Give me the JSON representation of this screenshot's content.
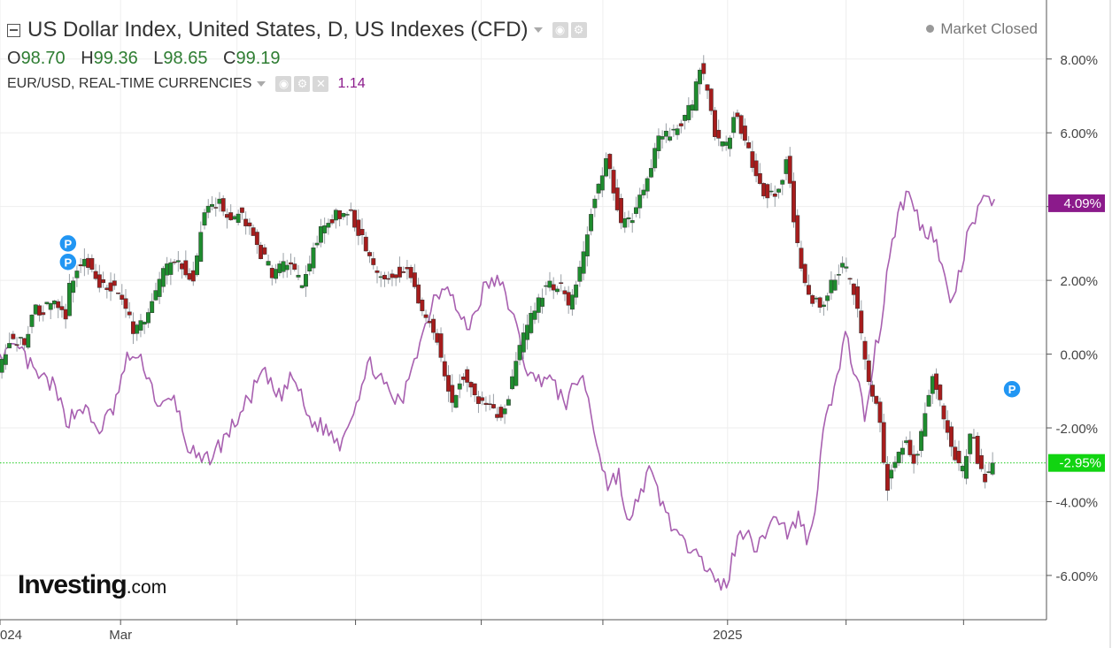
{
  "header": {
    "title": "US Dollar Index, United States, D, US Indexes (CFD)",
    "ohlc": [
      {
        "key": "O",
        "value": "98.70"
      },
      {
        "key": "H",
        "value": "99.36"
      },
      {
        "key": "L",
        "value": "98.65"
      },
      {
        "key": "C",
        "value": "99.19"
      }
    ],
    "secondary_series": "EUR/USD, REAL-TIME CURRENCIES",
    "secondary_value": "1.14",
    "market_status": "Market Closed"
  },
  "logo": {
    "text": "Investing",
    "suffix": ".com"
  },
  "colors": {
    "up": "#1e8c2e",
    "down": "#a61c1c",
    "overlay": "#a860b0",
    "last_label": "#11d411",
    "overlay_label": "#8b1a8b"
  },
  "chart_data": {
    "type": "line",
    "y_unit": "%",
    "y_ticks": [
      "8.00%",
      "6.00%",
      "4.00%",
      "2.00%",
      "0.00%",
      "-2.00%",
      "-4.00%",
      "-6.00%"
    ],
    "ylim": [
      -7.2,
      9.6
    ],
    "x_tick_labels": [
      {
        "label": "024",
        "t": 0
      },
      {
        "label": "Mar",
        "t": 0.117
      },
      {
        "label": "2025",
        "t": 0.706
      }
    ],
    "x_gridlines": [
      0,
      0.117,
      0.23,
      0.345,
      0.467,
      0.585,
      0.706,
      0.821,
      0.935
    ],
    "last_values": {
      "usd_index": "-2.95%",
      "eur_usd": "4.09%"
    },
    "markers": [
      {
        "label": "P",
        "t": 0.066,
        "y": 3.0
      },
      {
        "label": "P",
        "t": 0.066,
        "y": 2.5
      },
      {
        "label": "P",
        "t": 0.982,
        "y": -0.95
      }
    ],
    "series": [
      {
        "kind": "candles",
        "anchors": [
          [
            0,
            -0.6
          ],
          [
            0.01,
            0.4
          ],
          [
            0.025,
            0.3
          ],
          [
            0.035,
            1.2
          ],
          [
            0.055,
            1.3
          ],
          [
            0.065,
            1.0
          ],
          [
            0.07,
            2.0
          ],
          [
            0.085,
            2.6
          ],
          [
            0.095,
            2.0
          ],
          [
            0.115,
            1.8
          ],
          [
            0.13,
            0.7
          ],
          [
            0.145,
            1.0
          ],
          [
            0.16,
            2.2
          ],
          [
            0.175,
            2.6
          ],
          [
            0.19,
            2.0
          ],
          [
            0.2,
            4.0
          ],
          [
            0.215,
            4.1
          ],
          [
            0.225,
            3.5
          ],
          [
            0.235,
            3.9
          ],
          [
            0.25,
            3.0
          ],
          [
            0.265,
            2.2
          ],
          [
            0.28,
            2.5
          ],
          [
            0.295,
            1.8
          ],
          [
            0.31,
            3.2
          ],
          [
            0.325,
            3.7
          ],
          [
            0.34,
            3.9
          ],
          [
            0.355,
            3.0
          ],
          [
            0.37,
            2.0
          ],
          [
            0.385,
            2.2
          ],
          [
            0.4,
            2.3
          ],
          [
            0.412,
            1.0
          ],
          [
            0.425,
            0.6
          ],
          [
            0.44,
            -1.4
          ],
          [
            0.45,
            -0.5
          ],
          [
            0.46,
            -1.0
          ],
          [
            0.475,
            -1.5
          ],
          [
            0.49,
            -1.6
          ],
          [
            0.5,
            -0.6
          ],
          [
            0.51,
            0.5
          ],
          [
            0.52,
            1.2
          ],
          [
            0.53,
            1.8
          ],
          [
            0.545,
            1.9
          ],
          [
            0.555,
            1.2
          ],
          [
            0.565,
            2.3
          ],
          [
            0.575,
            3.8
          ],
          [
            0.59,
            5.3
          ],
          [
            0.6,
            4.2
          ],
          [
            0.605,
            3.5
          ],
          [
            0.615,
            3.7
          ],
          [
            0.63,
            4.8
          ],
          [
            0.64,
            5.8
          ],
          [
            0.66,
            6.2
          ],
          [
            0.675,
            6.8
          ],
          [
            0.68,
            7.8
          ],
          [
            0.69,
            7.0
          ],
          [
            0.695,
            6.0
          ],
          [
            0.705,
            5.5
          ],
          [
            0.715,
            6.5
          ],
          [
            0.725,
            5.8
          ],
          [
            0.74,
            4.5
          ],
          [
            0.755,
            4.2
          ],
          [
            0.765,
            5.3
          ],
          [
            0.775,
            3.0
          ],
          [
            0.785,
            1.5
          ],
          [
            0.8,
            1.3
          ],
          [
            0.81,
            2.0
          ],
          [
            0.82,
            2.4
          ],
          [
            0.83,
            1.8
          ],
          [
            0.837,
            0.5
          ],
          [
            0.845,
            -0.8
          ],
          [
            0.855,
            -1.5
          ],
          [
            0.862,
            -3.6
          ],
          [
            0.87,
            -3.0
          ],
          [
            0.88,
            -2.4
          ],
          [
            0.89,
            -3.0
          ],
          [
            0.9,
            -1.5
          ],
          [
            0.907,
            -0.5
          ],
          [
            0.915,
            -1.5
          ],
          [
            0.925,
            -2.4
          ],
          [
            0.935,
            -3.3
          ],
          [
            0.945,
            -2.1
          ],
          [
            0.955,
            -3.4
          ],
          [
            0.965,
            -3.0
          ]
        ]
      },
      {
        "kind": "line",
        "anchors": [
          [
            0,
            0.0
          ],
          [
            0.02,
            0.1
          ],
          [
            0.035,
            -0.6
          ],
          [
            0.05,
            -0.8
          ],
          [
            0.065,
            -1.8
          ],
          [
            0.08,
            -1.4
          ],
          [
            0.095,
            -2.1
          ],
          [
            0.11,
            -1.5
          ],
          [
            0.125,
            0.0
          ],
          [
            0.14,
            -0.3
          ],
          [
            0.155,
            -1.5
          ],
          [
            0.17,
            -1.2
          ],
          [
            0.18,
            -2.4
          ],
          [
            0.195,
            -3.0
          ],
          [
            0.21,
            -2.6
          ],
          [
            0.225,
            -2.0
          ],
          [
            0.24,
            -1.3
          ],
          [
            0.255,
            -0.5
          ],
          [
            0.27,
            -1.2
          ],
          [
            0.285,
            -0.6
          ],
          [
            0.3,
            -1.8
          ],
          [
            0.315,
            -2.0
          ],
          [
            0.33,
            -2.4
          ],
          [
            0.345,
            -1.3
          ],
          [
            0.36,
            -0.2
          ],
          [
            0.375,
            -1.0
          ],
          [
            0.39,
            -1.4
          ],
          [
            0.4,
            -0.2
          ],
          [
            0.41,
            0.5
          ],
          [
            0.42,
            1.5
          ],
          [
            0.435,
            2.0
          ],
          [
            0.445,
            1.0
          ],
          [
            0.455,
            0.7
          ],
          [
            0.47,
            1.8
          ],
          [
            0.48,
            2.0
          ],
          [
            0.49,
            1.7
          ],
          [
            0.5,
            0.8
          ],
          [
            0.51,
            -0.3
          ],
          [
            0.52,
            -0.8
          ],
          [
            0.53,
            -0.5
          ],
          [
            0.54,
            -1.0
          ],
          [
            0.55,
            -1.3
          ],
          [
            0.565,
            -0.5
          ],
          [
            0.58,
            -2.5
          ],
          [
            0.59,
            -3.6
          ],
          [
            0.6,
            -3.2
          ],
          [
            0.61,
            -4.8
          ],
          [
            0.62,
            -3.8
          ],
          [
            0.63,
            -3.2
          ],
          [
            0.645,
            -4.2
          ],
          [
            0.655,
            -4.8
          ],
          [
            0.665,
            -5.3
          ],
          [
            0.675,
            -5.0
          ],
          [
            0.685,
            -5.8
          ],
          [
            0.695,
            -6.3
          ],
          [
            0.705,
            -6.2
          ],
          [
            0.715,
            -5.1
          ],
          [
            0.725,
            -4.6
          ],
          [
            0.735,
            -5.4
          ],
          [
            0.745,
            -4.6
          ],
          [
            0.755,
            -4.4
          ],
          [
            0.765,
            -4.9
          ],
          [
            0.775,
            -4.4
          ],
          [
            0.785,
            -5.1
          ],
          [
            0.795,
            -3.3
          ],
          [
            0.8,
            -1.5
          ],
          [
            0.81,
            -1.0
          ],
          [
            0.82,
            0.5
          ],
          [
            0.83,
            -0.5
          ],
          [
            0.84,
            -1.8
          ],
          [
            0.848,
            0.0
          ],
          [
            0.855,
            0.8
          ],
          [
            0.862,
            2.6
          ],
          [
            0.872,
            3.8
          ],
          [
            0.88,
            4.4
          ],
          [
            0.888,
            3.9
          ],
          [
            0.896,
            3.3
          ],
          [
            0.905,
            3.4
          ],
          [
            0.915,
            2.2
          ],
          [
            0.922,
            1.4
          ],
          [
            0.93,
            2.0
          ],
          [
            0.94,
            3.3
          ],
          [
            0.95,
            3.9
          ],
          [
            0.96,
            4.3
          ],
          [
            0.965,
            4.2
          ]
        ]
      }
    ]
  }
}
